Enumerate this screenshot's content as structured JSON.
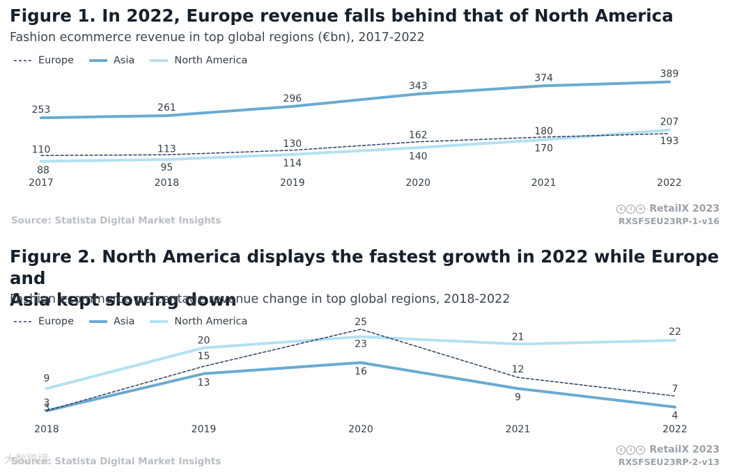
{
  "figures": [
    {
      "title": "Figure 1. In 2022, Europe revenue falls behind that of North America",
      "subtitle": "Fashion ecommerce revenue in top global regions (€bn), 2017-2022",
      "legend": {
        "europe": "Europe",
        "asia": "Asia",
        "north_america": "North America"
      },
      "source": "Source: Statista Digital Market Insights",
      "brand": "RetailX 2023",
      "code": "RXSFSEU23RP-1-v16"
    },
    {
      "title_line1": "Figure 2. North America displays the fastest growth in 2022 while Europe and",
      "title_line2": "Asia kept slowing down",
      "subtitle": "Fashion ecommerce percentage revenue change in top global regions, 2018-2022",
      "legend": {
        "europe": "Europe",
        "asia": "Asia",
        "north_america": "North America"
      },
      "source": "Source: Statista Digital Market Insights",
      "brand": "RetailX 2023",
      "code": "RXSFSEU23RP-2-v13"
    }
  ],
  "watermark": "大数跨境",
  "colors": {
    "europe": "#2b3e5c",
    "asia": "#6aaad0",
    "north_america": "#b3e1f2",
    "text": "#333d47"
  },
  "chart_data": [
    {
      "type": "line",
      "title": "Figure 1. In 2022, Europe revenue falls behind that of North America",
      "subtitle": "Fashion ecommerce revenue in top global regions (€bn), 2017-2022",
      "categories": [
        "2017",
        "2018",
        "2019",
        "2020",
        "2021",
        "2022"
      ],
      "series": [
        {
          "name": "Europe",
          "values": [
            110,
            113,
            130,
            162,
            180,
            193
          ],
          "style": "dashed",
          "color": "#2b3e5c"
        },
        {
          "name": "Asia",
          "values": [
            253,
            261,
            296,
            343,
            374,
            389
          ],
          "style": "solid",
          "color": "#6aaad0"
        },
        {
          "name": "North America",
          "values": [
            88,
            95,
            114,
            140,
            170,
            207
          ],
          "style": "solid",
          "color": "#b3e1f2"
        }
      ],
      "ylim": [
        40,
        430
      ],
      "grid": false,
      "legend": "top-left"
    },
    {
      "type": "line",
      "title": "Figure 2. North America displays the fastest growth in 2022 while Europe and Asia kept slowing down",
      "subtitle": "Fashion ecommerce percentage revenue change in top global regions, 2018-2022",
      "categories": [
        "2018",
        "2019",
        "2020",
        "2021",
        "2022"
      ],
      "series": [
        {
          "name": "Europe",
          "values": [
            3,
            15,
            25,
            12,
            7
          ],
          "style": "dashed",
          "color": "#2b3e5c"
        },
        {
          "name": "Asia",
          "values": [
            3,
            13,
            16,
            9,
            4
          ],
          "style": "solid",
          "color": "#6aaad0"
        },
        {
          "name": "North America",
          "values": [
            9,
            20,
            23,
            21,
            22
          ],
          "style": "solid",
          "color": "#b3e1f2"
        }
      ],
      "ylim": [
        0,
        28
      ],
      "grid": false,
      "legend": "top-left"
    }
  ]
}
